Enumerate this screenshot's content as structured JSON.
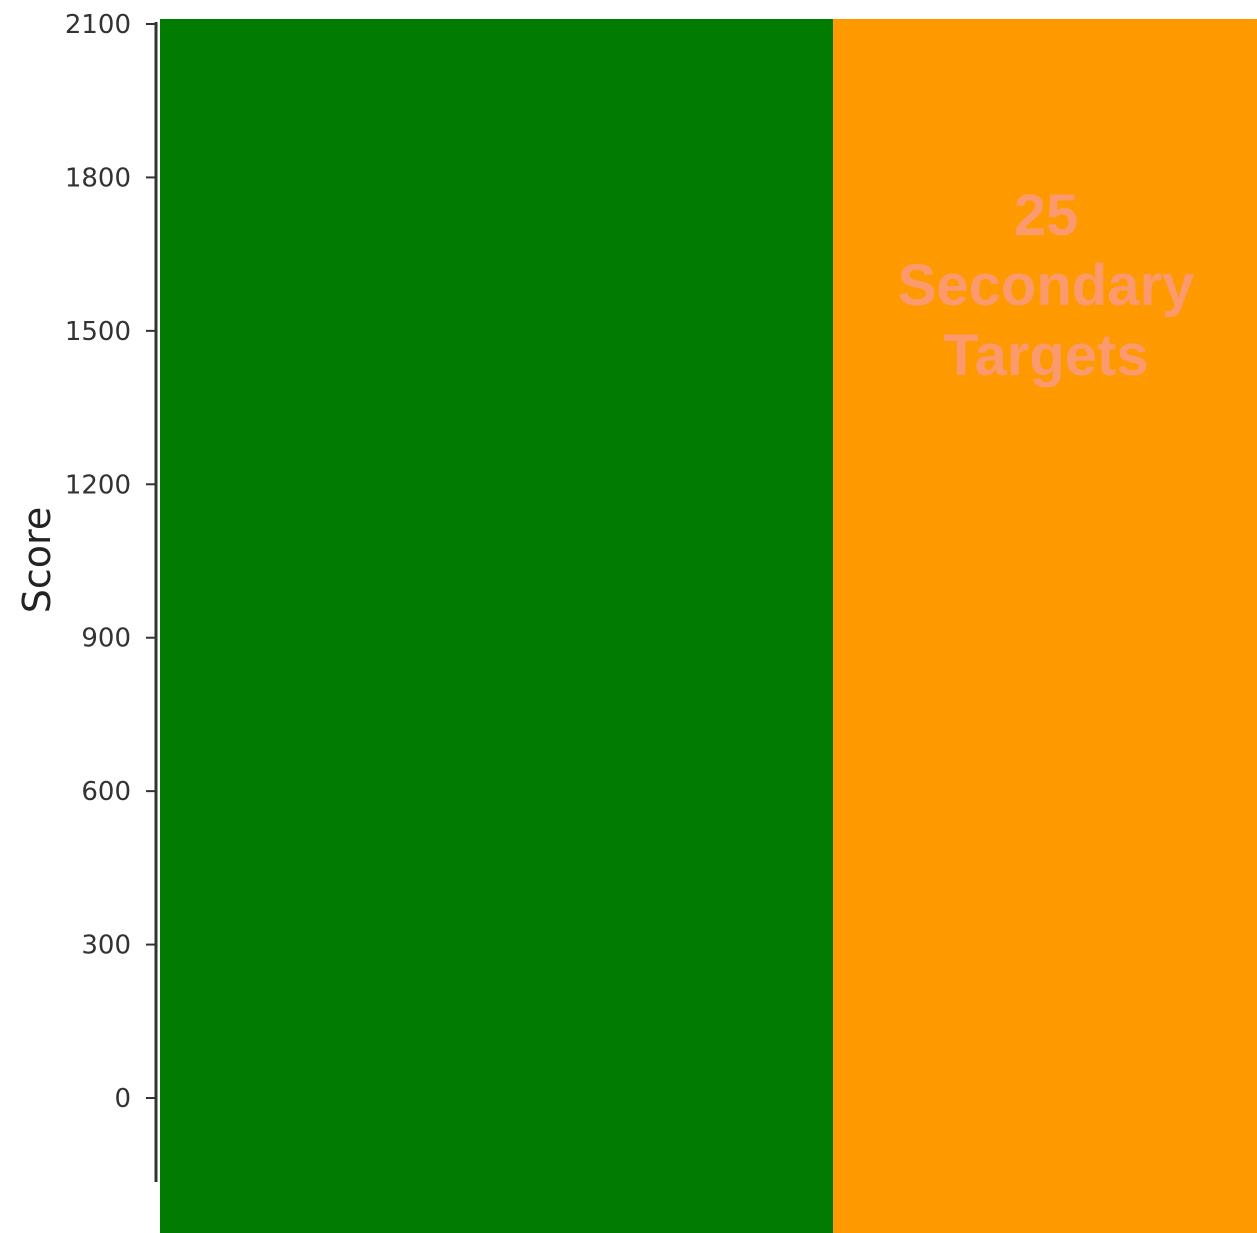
{
  "chart_data": {
    "type": "bar",
    "ylabel": "Score",
    "yticks": [
      0,
      300,
      600,
      900,
      1200,
      1500,
      1800,
      2100
    ],
    "ylim": [
      0,
      2100
    ],
    "grid": false,
    "bars": [
      {
        "color": "#027b01",
        "label_lines": []
      },
      {
        "color": "#fe9a00",
        "label_lines": [
          "25",
          "Secondary",
          "Targets"
        ],
        "label_color": "#fa9a6e"
      }
    ]
  }
}
